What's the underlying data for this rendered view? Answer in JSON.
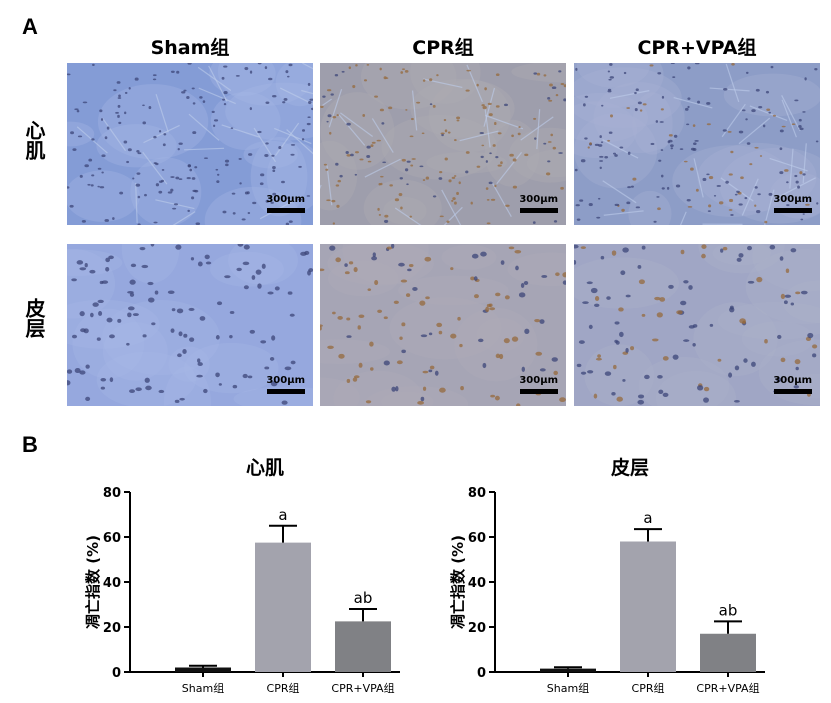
{
  "panels": {
    "a": "A",
    "b": "B"
  },
  "columns": [
    "Sham组",
    "CPR组",
    "CPR+VPA组"
  ],
  "rows": [
    "心肌",
    "皮层"
  ],
  "scale_label": "300μm",
  "colors": {
    "sham": "#111111",
    "cpr": "#a3a3ad",
    "cprvpa": "#808185",
    "tissue_base": "#8aa0d8",
    "tissue_brown": "#b48a5a"
  },
  "chart_data": [
    {
      "type": "bar",
      "title": "心肌",
      "categories": [
        "Sham组",
        "CPR组",
        "CPR+VPA组"
      ],
      "values": [
        2,
        57.5,
        22.5
      ],
      "errors": [
        0.8,
        7.5,
        5.5
      ],
      "annotations": [
        "",
        "a",
        "ab"
      ],
      "ylabel": "凋亡指数 (%)",
      "ylim": [
        0,
        80
      ],
      "yticks": [
        0,
        20,
        40,
        60,
        80
      ]
    },
    {
      "type": "bar",
      "title": "皮层",
      "categories": [
        "Sham组",
        "CPR组",
        "CPR+VPA组"
      ],
      "values": [
        1.5,
        58,
        17
      ],
      "errors": [
        0.6,
        5.5,
        5.5
      ],
      "annotations": [
        "",
        "a",
        "ab"
      ],
      "ylabel": "凋亡指数 (%)",
      "ylim": [
        0,
        80
      ],
      "yticks": [
        0,
        20,
        40,
        60,
        80
      ]
    }
  ]
}
